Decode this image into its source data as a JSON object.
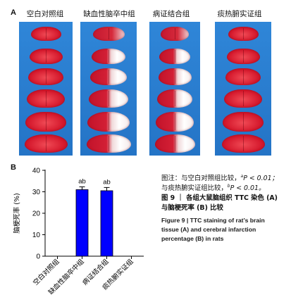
{
  "panel_a_label": "A",
  "panel_b_label": "B",
  "groups": [
    "空白对照组",
    "缺血性脑卒中组",
    "病证结合组",
    "痰热腑实证组"
  ],
  "chart_data": {
    "type": "bar",
    "categories": [
      "空白对照组",
      "缺血性脑卒中组",
      "病证结合组",
      "痰热腑实证组"
    ],
    "values": [
      0,
      31,
      30.5,
      0
    ],
    "errors": [
      0,
      1.3,
      1.5,
      0
    ],
    "annotations": [
      "",
      "ab",
      "ab",
      ""
    ],
    "ylabel": "脑梗死率 (%)",
    "ylim": [
      0,
      40
    ],
    "yticks": [
      "0",
      "10",
      "20",
      "30",
      "40"
    ],
    "bar_color": "#0000ff"
  },
  "caption": {
    "note_line1_prefix": "图注：与空白对照组比较，",
    "note_line1_sup": "a",
    "note_line1_suffix": "P < 0.01；",
    "note_line2_prefix": "与痰热腑实证组比较，",
    "note_line2_sup": "b",
    "note_line2_suffix": "P < 0.01。",
    "title_cn_line1": "图 9 ｜ 各组大鼠脑组织 TTC 染色 (A)",
    "title_cn_line2": "与脑梗死率 (B) 比较",
    "title_en_line1": "Figure 9   |   TTC staining of rat’s brain",
    "title_en_line2": "tissue (A) and cerebral infarction",
    "title_en_line3": "percentage (B) in rats"
  }
}
